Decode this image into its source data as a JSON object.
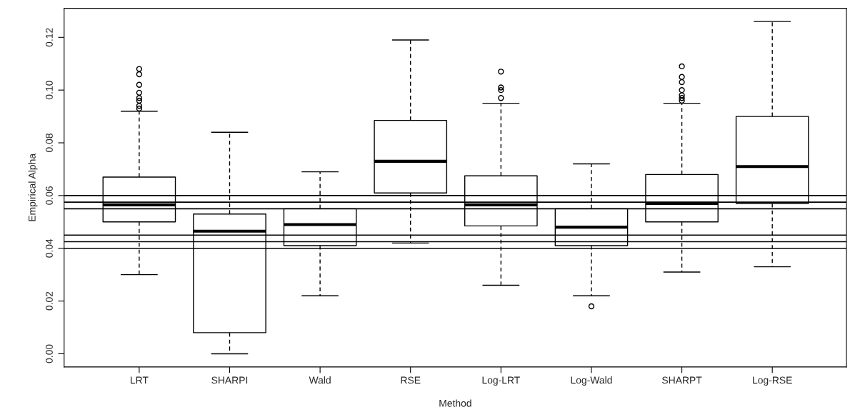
{
  "chart_data": {
    "type": "box",
    "xlabel": "Method",
    "ylabel": "Empirical Alpha",
    "categories": [
      "LRT",
      "SHARPI",
      "Wald",
      "RSE",
      "Log-LRT",
      "Log-Wald",
      "SHARPT",
      "Log-RSE"
    ],
    "boxes": [
      {
        "low": 0.03,
        "q1": 0.05,
        "median": 0.0565,
        "q3": 0.067,
        "high": 0.092,
        "outliers": [
          0.093,
          0.094,
          0.096,
          0.097,
          0.099,
          0.102,
          0.106,
          0.108
        ]
      },
      {
        "low": 0.0,
        "q1": 0.008,
        "median": 0.0465,
        "q3": 0.053,
        "high": 0.084
      },
      {
        "low": 0.022,
        "q1": 0.041,
        "median": 0.049,
        "q3": 0.055,
        "high": 0.069
      },
      {
        "low": 0.042,
        "q1": 0.061,
        "median": 0.073,
        "q3": 0.0885,
        "high": 0.119
      },
      {
        "low": 0.026,
        "q1": 0.0485,
        "median": 0.0565,
        "q3": 0.0675,
        "high": 0.095,
        "outliers": [
          0.097,
          0.1,
          0.101,
          0.107
        ]
      },
      {
        "low": 0.022,
        "q1": 0.041,
        "median": 0.048,
        "q3": 0.055,
        "high": 0.072,
        "outliers": [
          0.018
        ]
      },
      {
        "low": 0.031,
        "q1": 0.05,
        "median": 0.057,
        "q3": 0.068,
        "high": 0.095,
        "outliers": [
          0.096,
          0.097,
          0.098,
          0.1,
          0.103,
          0.105,
          0.109
        ]
      },
      {
        "low": 0.033,
        "q1": 0.057,
        "median": 0.071,
        "q3": 0.09,
        "high": 0.126
      }
    ],
    "ylim": [
      -0.005,
      0.131
    ],
    "yticks": [
      {
        "value": 0,
        "label": "0.00"
      },
      {
        "value": 0.02,
        "label": "0.02"
      },
      {
        "value": 0.04,
        "label": "0.04"
      },
      {
        "value": 0.06,
        "label": "0.06"
      },
      {
        "value": 0.08,
        "label": "0.08"
      },
      {
        "value": 0.1,
        "label": "0.10"
      },
      {
        "value": 0.12,
        "label": "0.12"
      }
    ],
    "ref_lines": [
      {
        "axis": "y",
        "value": 0.06,
        "color": "#000000"
      },
      {
        "axis": "y",
        "value": 0.0575,
        "color": "#000000"
      },
      {
        "axis": "y",
        "value": 0.055,
        "color": "#000000"
      },
      {
        "axis": "y",
        "value": 0.045,
        "color": "#000000"
      },
      {
        "axis": "y",
        "value": 0.0425,
        "color": "#000000"
      },
      {
        "axis": "y",
        "value": 0.04,
        "color": "#000000"
      }
    ],
    "grid": false
  }
}
